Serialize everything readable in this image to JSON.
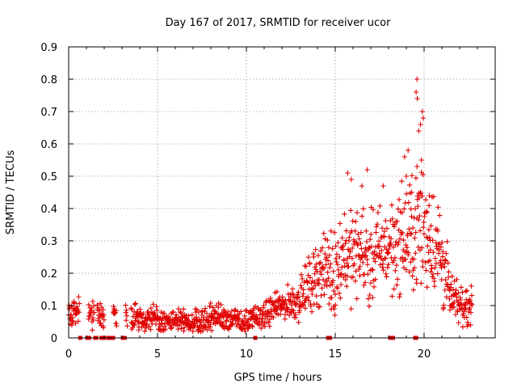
{
  "chart_data": {
    "type": "scatter",
    "title": "Day 167 of 2017, SRMTID for receiver ucor",
    "xlabel": "GPS time / hours",
    "ylabel": "SRMTID / TECUs",
    "xlim": [
      0,
      24
    ],
    "ylim": [
      0,
      0.9
    ],
    "xticks": [
      "0",
      "5",
      "10",
      "15",
      "20"
    ],
    "xtick_values": [
      0,
      5,
      10,
      15,
      20
    ],
    "yticks": [
      "0",
      "0.1",
      "0.2",
      "0.3",
      "0.4",
      "0.5",
      "0.6",
      "0.7",
      "0.8",
      "0.9"
    ],
    "ytick_values": [
      0,
      0.1,
      0.2,
      0.3,
      0.4,
      0.5,
      0.6,
      0.7,
      0.8,
      0.9
    ],
    "grid": true,
    "marker": "plus",
    "color": "#e00000",
    "series": [
      {
        "name": "SRMTID",
        "trend": [
          [
            0.0,
            0.08
          ],
          [
            0.5,
            0.09
          ],
          [
            1.0,
            0.07
          ],
          [
            1.5,
            0.08
          ],
          [
            2.0,
            0.07
          ],
          [
            2.5,
            0.07
          ],
          [
            3.0,
            0.08
          ],
          [
            3.5,
            0.07
          ],
          [
            4.0,
            0.06
          ],
          [
            4.5,
            0.06
          ],
          [
            5.0,
            0.05
          ],
          [
            5.5,
            0.05
          ],
          [
            6.0,
            0.05
          ],
          [
            6.5,
            0.05
          ],
          [
            7.0,
            0.05
          ],
          [
            7.5,
            0.05
          ],
          [
            8.0,
            0.06
          ],
          [
            8.5,
            0.07
          ],
          [
            9.0,
            0.06
          ],
          [
            9.5,
            0.05
          ],
          [
            10.0,
            0.05
          ],
          [
            10.5,
            0.06
          ],
          [
            11.0,
            0.07
          ],
          [
            11.5,
            0.09
          ],
          [
            12.0,
            0.1
          ],
          [
            12.5,
            0.11
          ],
          [
            13.0,
            0.12
          ],
          [
            13.5,
            0.16
          ],
          [
            14.0,
            0.2
          ],
          [
            14.5,
            0.21
          ],
          [
            15.0,
            0.2
          ],
          [
            15.5,
            0.27
          ],
          [
            16.0,
            0.25
          ],
          [
            16.5,
            0.27
          ],
          [
            17.0,
            0.24
          ],
          [
            17.5,
            0.27
          ],
          [
            18.0,
            0.28
          ],
          [
            18.5,
            0.3
          ],
          [
            19.0,
            0.3
          ],
          [
            19.5,
            0.33
          ],
          [
            20.0,
            0.35
          ],
          [
            20.5,
            0.3
          ],
          [
            21.0,
            0.25
          ],
          [
            21.5,
            0.12
          ],
          [
            22.0,
            0.1
          ],
          [
            22.5,
            0.1
          ],
          [
            22.7,
            0.1
          ]
        ],
        "spread": [
          [
            0.0,
            0.03
          ],
          [
            12.0,
            0.03
          ],
          [
            13.5,
            0.06
          ],
          [
            15.0,
            0.1
          ],
          [
            18.0,
            0.1
          ],
          [
            19.5,
            0.14
          ],
          [
            21.0,
            0.12
          ],
          [
            21.5,
            0.05
          ],
          [
            22.7,
            0.04
          ]
        ],
        "gaps": [
          [
            0.6,
            1.1
          ],
          [
            1.45,
            1.6
          ],
          [
            2.0,
            2.5
          ],
          [
            2.7,
            3.2
          ],
          [
            3.3,
            3.5
          ]
        ],
        "spikes": [
          [
            19.6,
            0.8
          ],
          [
            19.55,
            0.76
          ],
          [
            19.62,
            0.74
          ],
          [
            19.9,
            0.7
          ],
          [
            19.95,
            0.68
          ],
          [
            19.8,
            0.66
          ],
          [
            19.7,
            0.64
          ],
          [
            19.1,
            0.58
          ],
          [
            18.9,
            0.56
          ],
          [
            19.6,
            0.53
          ],
          [
            19.85,
            0.55
          ],
          [
            16.8,
            0.52
          ],
          [
            15.7,
            0.51
          ],
          [
            15.9,
            0.49
          ],
          [
            17.7,
            0.47
          ],
          [
            19.0,
            0.5
          ],
          [
            20.3,
            0.44
          ],
          [
            16.5,
            0.47
          ],
          [
            19.3,
            0.45
          ]
        ],
        "zero_points": [
          0.65,
          1.05,
          1.1,
          1.15,
          1.5,
          1.55,
          1.85,
          1.9,
          1.95,
          2.0,
          2.25,
          2.3,
          2.5,
          3.05,
          3.1,
          3.15,
          10.5,
          14.6,
          14.65,
          14.7,
          18.1,
          18.15,
          18.2,
          18.25,
          19.5,
          19.55
        ]
      }
    ]
  }
}
